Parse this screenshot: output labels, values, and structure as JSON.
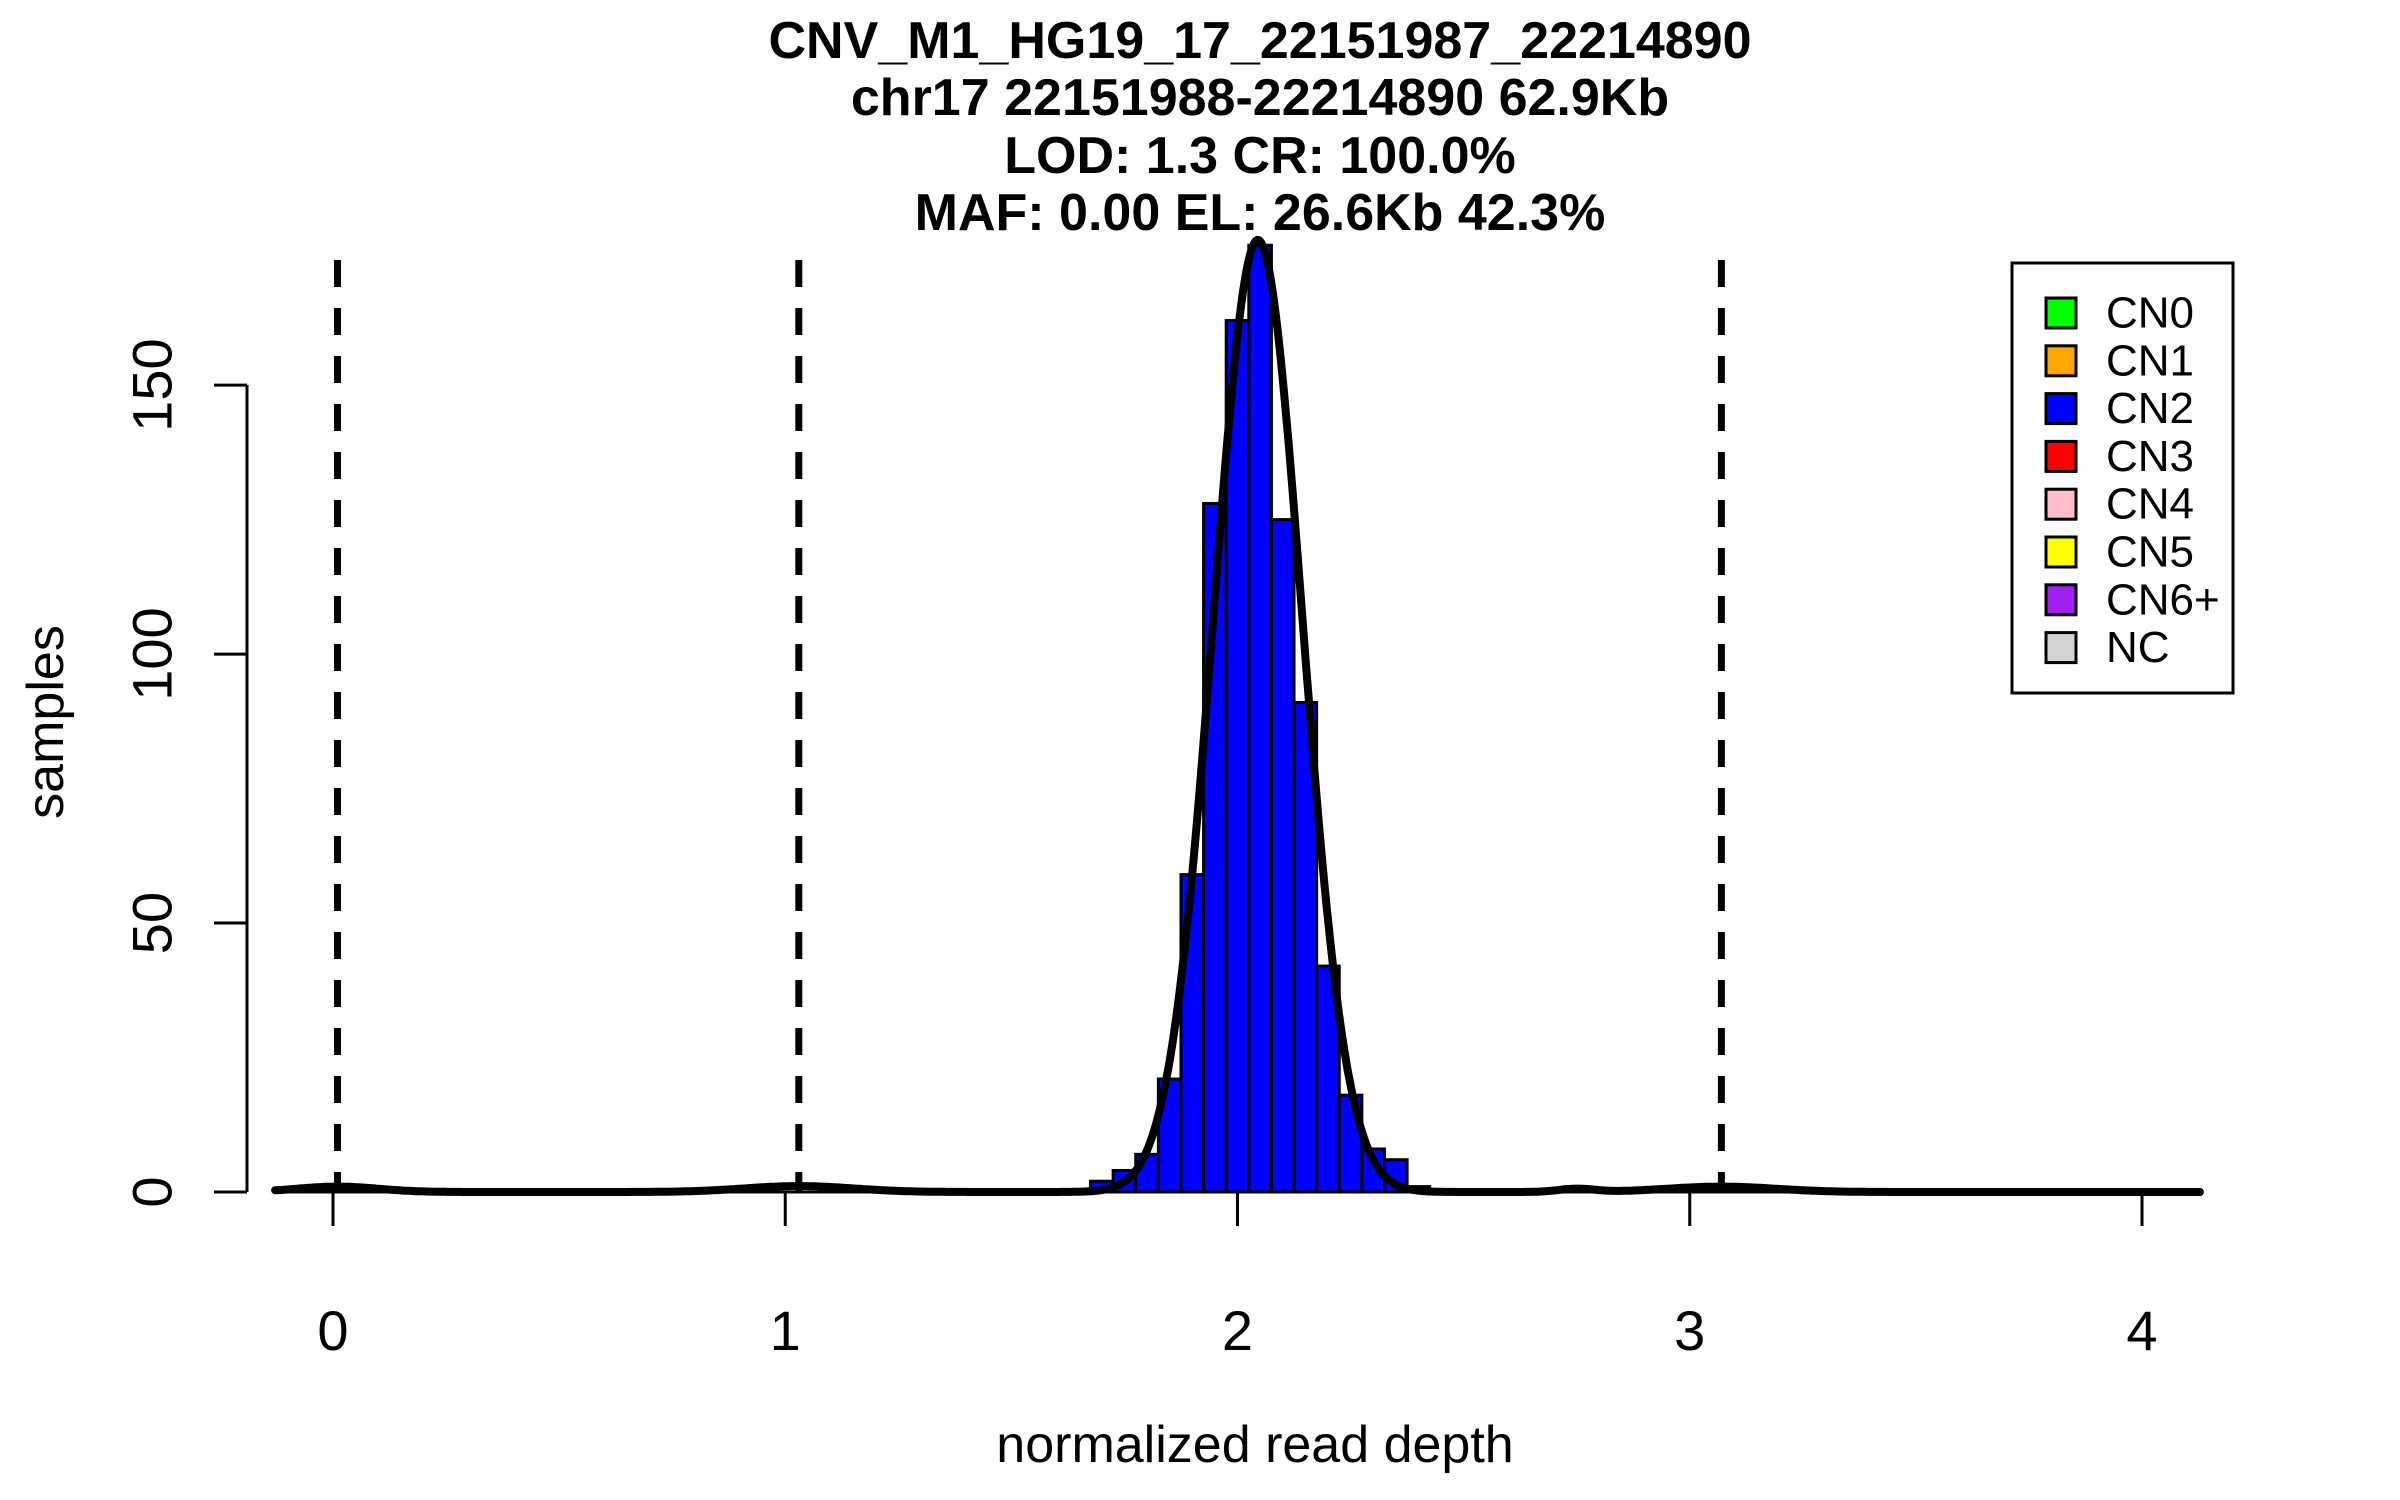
{
  "chart_data": {
    "type": "bar",
    "subtype": "histogram-with-density-fit",
    "title_lines": [
      "CNV_M1_HG19_17_22151987_22214890",
      "chr17 22151988-22214890 62.9Kb",
      "LOD: 1.3 CR: 100.0%",
      "MAF: 0.00 EL: 26.6Kb 42.3%"
    ],
    "xlabel": "normalized read depth",
    "ylabel": "samples",
    "x_ticks": [
      0,
      1,
      2,
      3,
      4
    ],
    "y_ticks": [
      0,
      50,
      100,
      150
    ],
    "xlim": [
      -0.128,
      4.128
    ],
    "ylim": [
      0,
      178
    ],
    "grid": false,
    "background_color": "#FFFFFF",
    "axis_color": "#000000",
    "bar_fill_color": "#0000FF",
    "bar_edge_color": "#000000",
    "bar_series_label": "CN2",
    "bins": {
      "bin_start": 1.675,
      "bin_width": 0.05,
      "counts": [
        2,
        4,
        7,
        21,
        59,
        128,
        162,
        176,
        125,
        91,
        42,
        18,
        8,
        6,
        1
      ]
    },
    "isolated_bins": [
      {
        "x_start": 2.725,
        "x_end": 2.775,
        "count": 1
      }
    ],
    "cluster_center_dashed_lines_x": [
      0.01,
      1.03,
      2.05,
      3.07
    ],
    "dashed_line_color": "#000000",
    "fit_curve": {
      "color": "#000000",
      "gaussian_components": [
        {
          "mu": 0.01,
          "sigma": 0.09,
          "amp": 1.0
        },
        {
          "mu": 1.03,
          "sigma": 0.12,
          "amp": 1.1
        },
        {
          "mu": 2.045,
          "sigma": 0.098,
          "amp": 177
        },
        {
          "mu": 2.75,
          "sigma": 0.04,
          "amp": 0.6
        },
        {
          "mu": 3.07,
          "sigma": 0.12,
          "amp": 1.0
        }
      ]
    },
    "legend": {
      "position": "top-right",
      "items": [
        {
          "label": "CN0",
          "color": "#00FF00"
        },
        {
          "label": "CN1",
          "color": "#FFA500"
        },
        {
          "label": "CN2",
          "color": "#0000FF"
        },
        {
          "label": "CN3",
          "color": "#FF0000"
        },
        {
          "label": "CN4",
          "color": "#FFC0CB"
        },
        {
          "label": "CN5",
          "color": "#FFFF00"
        },
        {
          "label": "CN6+",
          "color": "#A020F0"
        },
        {
          "label": "NC",
          "color": "#D3D3D3"
        }
      ]
    }
  }
}
